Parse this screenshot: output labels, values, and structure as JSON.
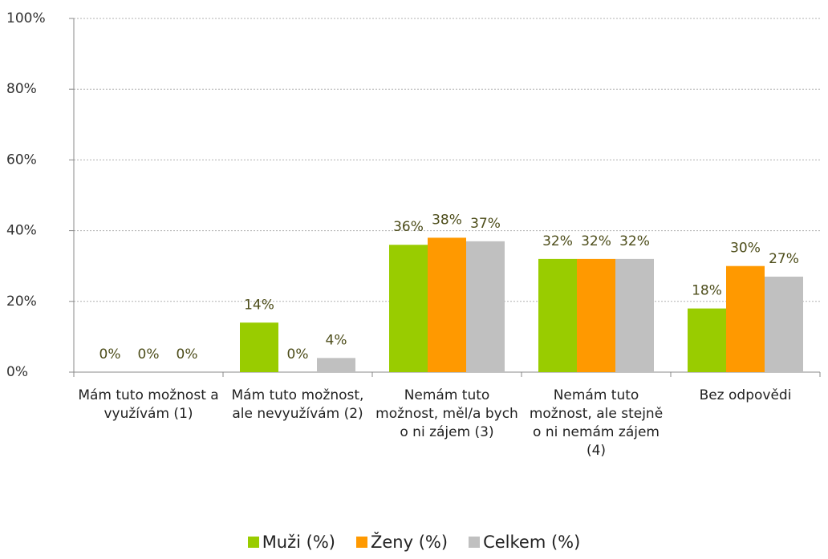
{
  "chart_data": {
    "type": "bar",
    "categories": [
      "Mám tuto možnost a využívám (1)",
      "Mám tuto možnost, ale nevyužívám (2)",
      "Nemám tuto možnost, měl/a bych o ni zájem (3)",
      "Nemám tuto možnost, ale stejně o ni nemám zájem (4)",
      "Bez odpovědi"
    ],
    "series": [
      {
        "name": "Muži (%)",
        "color": "#99cc00",
        "values": [
          0,
          14,
          36,
          32,
          18
        ],
        "value_labels": [
          "0%",
          "14%",
          "36%",
          "32%",
          "18%"
        ]
      },
      {
        "name": "Ženy (%)",
        "color": "#ff9900",
        "values": [
          0,
          0,
          38,
          32,
          30
        ],
        "value_labels": [
          "0%",
          "0%",
          "38%",
          "32%",
          "30%"
        ]
      },
      {
        "name": "Celkem (%)",
        "color": "#c0c0c0",
        "values": [
          0,
          4,
          37,
          32,
          27
        ],
        "value_labels": [
          "0%",
          "4%",
          "37%",
          "32%",
          "27%"
        ]
      }
    ],
    "ylim": [
      0,
      100
    ],
    "yticks": [
      {
        "value": 0,
        "label": "0%"
      },
      {
        "value": 20,
        "label": "20%"
      },
      {
        "value": 40,
        "label": "40%"
      },
      {
        "value": 60,
        "label": "60%"
      },
      {
        "value": 80,
        "label": "80%"
      },
      {
        "value": 100,
        "label": "100%"
      }
    ],
    "grid": true,
    "legend": "bottom"
  }
}
